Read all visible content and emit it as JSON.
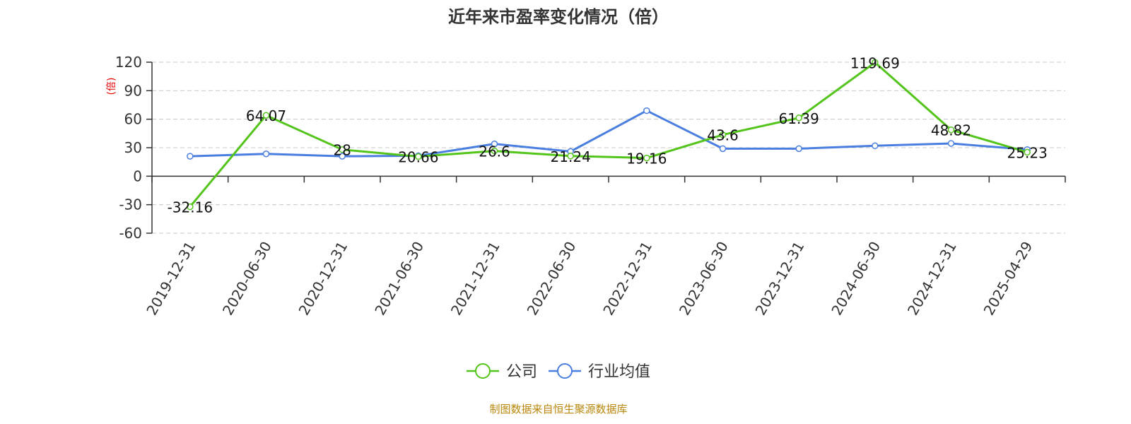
{
  "chart_data": {
    "type": "line",
    "title": "近年来市盈率变化情况（倍）",
    "ylabel": "(倍)",
    "ylim": [
      -60,
      120
    ],
    "yticks": [
      -60,
      -30,
      0,
      30,
      60,
      90,
      120
    ],
    "grid": true,
    "legend_position": "bottom",
    "categories": [
      "2019-12-31",
      "2020-06-30",
      "2020-12-31",
      "2021-06-30",
      "2021-12-31",
      "2022-06-30",
      "2022-12-31",
      "2023-06-30",
      "2023-12-31",
      "2024-06-30",
      "2024-12-31",
      "2025-04-29"
    ],
    "series": [
      {
        "name": "公司",
        "color": "#52c41a",
        "values": [
          -32.16,
          64.07,
          28,
          20.66,
          26.6,
          21.24,
          19.16,
          43.6,
          61.39,
          119.69,
          48.82,
          25.23
        ],
        "labels": [
          "-32.16",
          "64.07",
          "28",
          "20.66",
          "26.6",
          "21.24",
          "19.16",
          "43.6",
          "61.39",
          "119.69",
          "48.82",
          "25.23"
        ]
      },
      {
        "name": "行业均值",
        "color": "#4a7fe0",
        "values": [
          21,
          23.5,
          21,
          21.5,
          34,
          26,
          69,
          29,
          29,
          32,
          34.5,
          28
        ]
      }
    ],
    "source": "制图数据来自恒生聚源数据库"
  }
}
